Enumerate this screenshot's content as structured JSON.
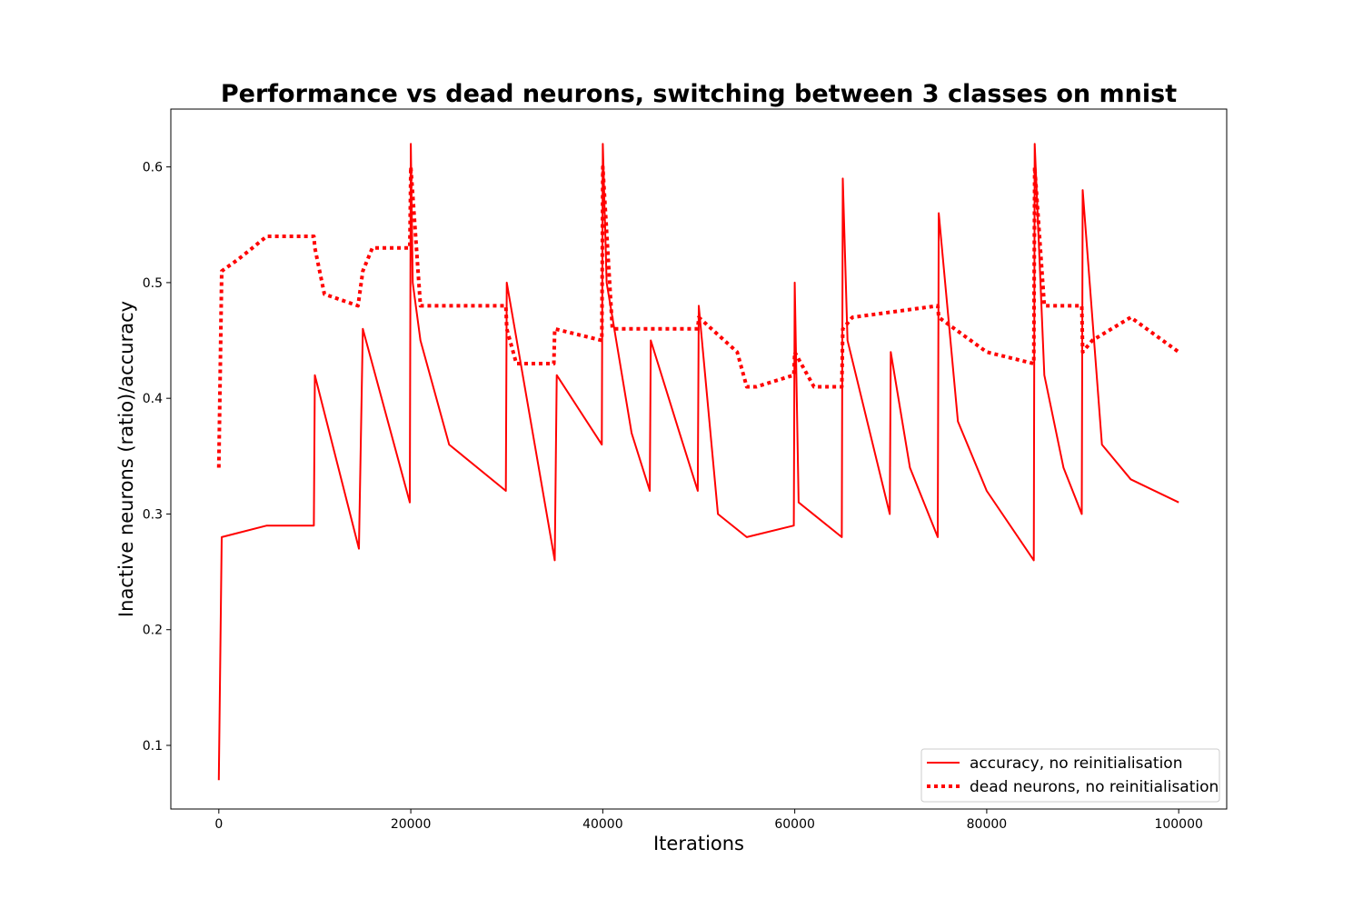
{
  "chart_data": {
    "type": "line",
    "title": "Performance vs dead neurons, switching between 3 classes on mnist",
    "xlabel": "Iterations",
    "ylabel": "Inactive neurons (ratio)/accuracy",
    "xlim": [
      -5000,
      105000
    ],
    "ylim": [
      0.045,
      0.65
    ],
    "xticks": [
      0,
      20000,
      40000,
      60000,
      80000,
      100000
    ],
    "xtick_labels": [
      "0",
      "20000",
      "40000",
      "60000",
      "80000",
      "100000"
    ],
    "yticks": [
      0.1,
      0.2,
      0.3,
      0.4,
      0.5,
      0.6
    ],
    "ytick_labels": [
      "0.1",
      "0.2",
      "0.3",
      "0.4",
      "0.5",
      "0.6"
    ],
    "grid": false,
    "legend_position": "lower-right",
    "series": [
      {
        "name": "accuracy, no reinitialisation",
        "style": "solid",
        "color": "#ff0000",
        "x": [
          0,
          300,
          5000,
          9900,
          10000,
          14600,
          15000,
          19900,
          20000,
          20200,
          21000,
          24000,
          29900,
          30000,
          35000,
          35200,
          39900,
          40000,
          40400,
          43000,
          44900,
          45000,
          48000,
          49900,
          50000,
          52000,
          55000,
          59900,
          60000,
          60400,
          64900,
          65000,
          65500,
          69900,
          70000,
          72000,
          74900,
          75000,
          77000,
          80000,
          84900,
          85000,
          86000,
          88000,
          89900,
          90000,
          92000,
          95000,
          100000
        ],
        "y": [
          0.07,
          0.28,
          0.29,
          0.29,
          0.42,
          0.27,
          0.46,
          0.31,
          0.62,
          0.5,
          0.45,
          0.36,
          0.32,
          0.5,
          0.26,
          0.42,
          0.36,
          0.62,
          0.5,
          0.37,
          0.32,
          0.45,
          0.37,
          0.32,
          0.48,
          0.3,
          0.28,
          0.29,
          0.5,
          0.31,
          0.28,
          0.59,
          0.45,
          0.3,
          0.44,
          0.34,
          0.28,
          0.56,
          0.38,
          0.32,
          0.26,
          0.62,
          0.42,
          0.34,
          0.3,
          0.58,
          0.36,
          0.33,
          0.31
        ]
      },
      {
        "name": "dead neurons, no reinitialisation",
        "style": "dotted",
        "color": "#ff0000",
        "x": [
          0,
          300,
          2000,
          5000,
          9900,
          10000,
          11000,
          14500,
          15000,
          16000,
          19900,
          20000,
          21000,
          25000,
          29900,
          30000,
          31000,
          34900,
          35000,
          39900,
          40000,
          41000,
          45000,
          49900,
          50000,
          54000,
          55000,
          56000,
          59900,
          60000,
          62000,
          64900,
          65000,
          66000,
          74900,
          75000,
          80000,
          84900,
          85000,
          86000,
          89900,
          90000,
          91000,
          95000,
          100000
        ],
        "y": [
          0.34,
          0.51,
          0.52,
          0.54,
          0.54,
          0.53,
          0.49,
          0.48,
          0.51,
          0.53,
          0.53,
          0.6,
          0.48,
          0.48,
          0.48,
          0.46,
          0.43,
          0.43,
          0.46,
          0.45,
          0.6,
          0.46,
          0.46,
          0.46,
          0.47,
          0.44,
          0.41,
          0.41,
          0.42,
          0.44,
          0.41,
          0.41,
          0.46,
          0.47,
          0.48,
          0.47,
          0.44,
          0.43,
          0.6,
          0.48,
          0.48,
          0.44,
          0.45,
          0.47,
          0.44
        ]
      }
    ]
  }
}
